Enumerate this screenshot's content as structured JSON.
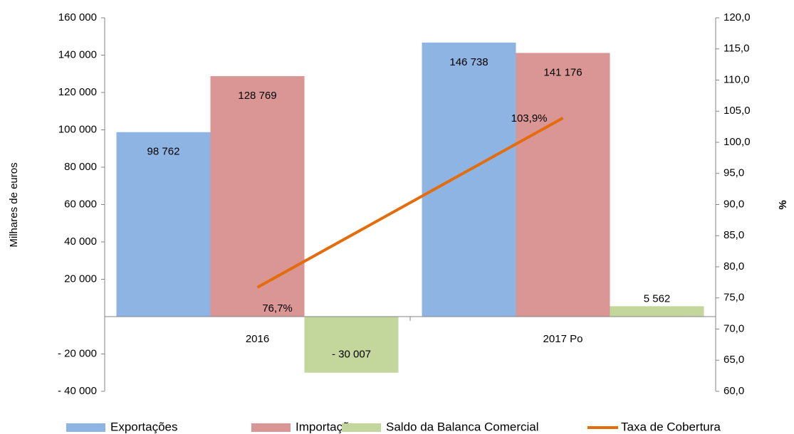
{
  "chart_data": {
    "type": "bar",
    "categories": [
      "2016",
      "2017 Po"
    ],
    "series": [
      {
        "name": "Exportações",
        "color": "#8eb4e3",
        "values": [
          98762,
          146738
        ],
        "value_labels": [
          "98 762",
          "146 738"
        ]
      },
      {
        "name": "Importações",
        "color": "#d99694",
        "values": [
          128769,
          141176
        ],
        "value_labels": [
          "128 769",
          "141 176"
        ]
      },
      {
        "name": "Saldo da Balanca Comercial",
        "color": "#c3d69b",
        "values": [
          -30007,
          5562
        ],
        "value_labels": [
          "- 30 007",
          "5 562"
        ]
      },
      {
        "name": "Taxa de Cobertura",
        "type": "line",
        "axis": "y2",
        "color": "#e46c0a",
        "values": [
          76.7,
          103.9
        ],
        "value_labels": [
          "76,7%",
          "103,9%"
        ]
      }
    ],
    "ylabel": "Milhares de euros",
    "y2label": "%",
    "ylim": [
      -40000,
      160000
    ],
    "yticks": [
      {
        "value": 160000,
        "label": "160 000"
      },
      {
        "value": 140000,
        "label": "140 000"
      },
      {
        "value": 120000,
        "label": "120 000"
      },
      {
        "value": 100000,
        "label": "100 000"
      },
      {
        "value": 80000,
        "label": "80 000"
      },
      {
        "value": 60000,
        "label": "60 000"
      },
      {
        "value": 40000,
        "label": "40 000"
      },
      {
        "value": 20000,
        "label": "20 000"
      },
      {
        "value": -20000,
        "label": "- 20 000"
      },
      {
        "value": -40000,
        "label": "- 40 000"
      }
    ],
    "y2lim": [
      60,
      120
    ],
    "y2ticks": [
      {
        "value": 120,
        "label": "120,0"
      },
      {
        "value": 115,
        "label": "115,0"
      },
      {
        "value": 110,
        "label": "110,0"
      },
      {
        "value": 105,
        "label": "105,0"
      },
      {
        "value": 100,
        "label": "100,0"
      },
      {
        "value": 95,
        "label": "95,0"
      },
      {
        "value": 90,
        "label": "90,0"
      },
      {
        "value": 85,
        "label": "85,0"
      },
      {
        "value": 80,
        "label": "80,0"
      },
      {
        "value": 75,
        "label": "75,0"
      },
      {
        "value": 70,
        "label": "70,0"
      },
      {
        "value": 65,
        "label": "65,0"
      },
      {
        "value": 60,
        "label": "60,0"
      }
    ],
    "legend": "bottom"
  }
}
